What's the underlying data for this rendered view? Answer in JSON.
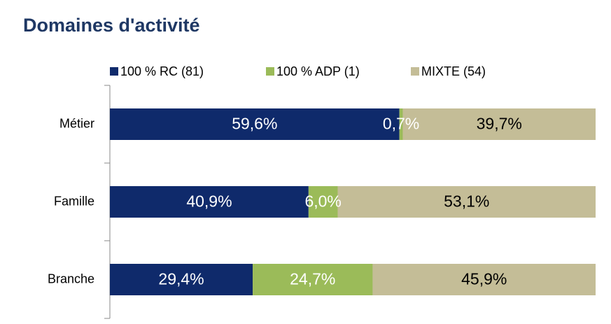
{
  "chart_data": {
    "type": "stacked-bar-horizontal",
    "title": "Domaines d'activité",
    "categories": [
      "Métier",
      "Famille",
      "Branche"
    ],
    "xlim": [
      0,
      100
    ],
    "series": [
      {
        "name": "100 % RC (81)",
        "color": "#0f2a6b",
        "label_color": "#ffffff",
        "values": [
          59.6,
          40.9,
          29.4
        ],
        "value_labels": [
          "59,6%",
          "40,9%",
          "29,4%"
        ]
      },
      {
        "name": "100 % ADP (1)",
        "color": "#9bbb59",
        "label_color": "#ffffff",
        "values": [
          0.7,
          6.0,
          24.7
        ],
        "value_labels": [
          "0,7%",
          "6,0%",
          "24,7%"
        ]
      },
      {
        "name": "MIXTE (54)",
        "color": "#c4bd97",
        "label_color": "#000000",
        "values": [
          39.7,
          53.1,
          45.9
        ],
        "value_labels": [
          "39,7%",
          "53,1%",
          "45,9%"
        ]
      }
    ],
    "legend": "top"
  }
}
